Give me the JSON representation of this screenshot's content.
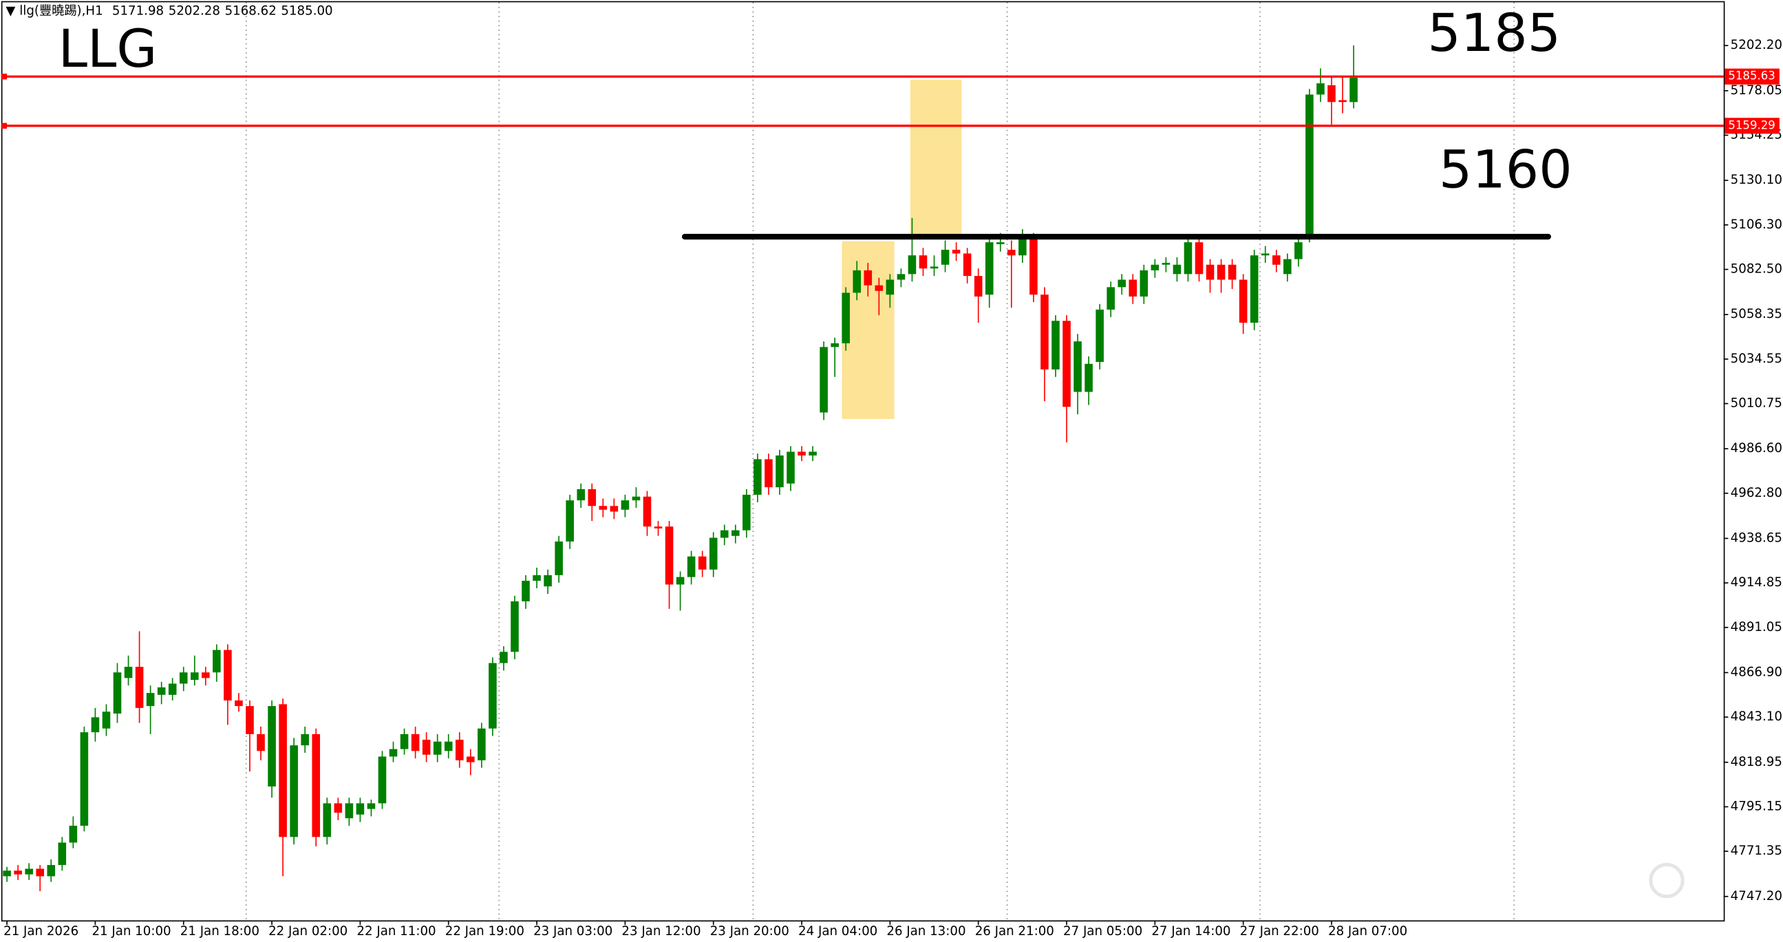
{
  "header": {
    "symbol": "llg(豐曉踢),H1",
    "ohlc": [
      "5171.98",
      "5202.28",
      "5168.62",
      "5185.00"
    ]
  },
  "notes": [
    "LLG",
    "5185",
    "5160"
  ],
  "chart_data": {
    "type": "candlestick",
    "categories": [
      "21 Jan 2026",
      null,
      null,
      null,
      null,
      null,
      null,
      null,
      "21 Jan 10:00",
      null,
      null,
      null,
      null,
      null,
      null,
      null,
      "21 Jan 18:00",
      null,
      null,
      null,
      null,
      null,
      null,
      null,
      "22 Jan 02:00",
      null,
      null,
      null,
      null,
      null,
      null,
      null,
      "22 Jan 11:00",
      null,
      null,
      null,
      null,
      null,
      null,
      null,
      "22 Jan 19:00",
      null,
      null,
      null,
      null,
      null,
      null,
      null,
      "23 Jan 03:00",
      null,
      null,
      null,
      null,
      null,
      null,
      null,
      "23 Jan 12:00",
      null,
      null,
      null,
      null,
      null,
      null,
      null,
      "23 Jan 20:00",
      null,
      null,
      null,
      null,
      null,
      null,
      null,
      "24 Jan 04:00",
      null,
      null,
      null,
      null,
      null,
      null,
      null,
      "26 Jan 13:00",
      null,
      null,
      null,
      null,
      null,
      null,
      null,
      "26 Jan 21:00",
      null,
      null,
      null,
      null,
      null,
      null,
      null,
      "27 Jan 05:00",
      null,
      null,
      null,
      null,
      null,
      null,
      null,
      "27 Jan 14:00",
      null,
      null,
      null,
      null,
      null,
      null,
      null,
      "27 Jan 22:00",
      null,
      null,
      null,
      null,
      null,
      null,
      null,
      "28 Jan 07:00",
      null,
      null
    ],
    "candles": [
      [
        4758,
        4763,
        4755,
        4761
      ],
      [
        4761,
        4764,
        4756,
        4759
      ],
      [
        4759,
        4765,
        4756,
        4762
      ],
      [
        4762,
        4764,
        4750,
        4758
      ],
      [
        4758,
        4767,
        4755,
        4764
      ],
      [
        4764,
        4779,
        4761,
        4776
      ],
      [
        4776,
        4790,
        4773,
        4785
      ],
      [
        4785,
        4838,
        4782,
        4835
      ],
      [
        4835,
        4848,
        4830,
        4843
      ],
      [
        4837,
        4850,
        4833,
        4846
      ],
      [
        4845,
        4872,
        4840,
        4867
      ],
      [
        4864,
        4876,
        4860,
        4870
      ],
      [
        4870,
        4889,
        4840,
        4848
      ],
      [
        4849,
        4860,
        4834,
        4856
      ],
      [
        4855,
        4862,
        4850,
        4859
      ],
      [
        4855,
        4864,
        4852,
        4861
      ],
      [
        4861,
        4870,
        4857,
        4867
      ],
      [
        4863,
        4876,
        4860,
        4867
      ],
      [
        4867,
        4870,
        4860,
        4864
      ],
      [
        4867,
        4882,
        4862,
        4879
      ],
      [
        4879,
        4882,
        4839,
        4852
      ],
      [
        4852,
        4856,
        4846,
        4849
      ],
      [
        4849,
        4852,
        4814,
        4834
      ],
      [
        4834,
        4838,
        4820,
        4825
      ],
      [
        4806,
        4852,
        4800,
        4849
      ],
      [
        4850,
        4853,
        4758,
        4779
      ],
      [
        4779,
        4832,
        4775,
        4828
      ],
      [
        4828,
        4838,
        4824,
        4834
      ],
      [
        4834,
        4837,
        4774,
        4779
      ],
      [
        4779,
        4800,
        4775,
        4797
      ],
      [
        4797,
        4800,
        4788,
        4792
      ],
      [
        4789,
        4800,
        4785,
        4797
      ],
      [
        4791,
        4800,
        4787,
        4797
      ],
      [
        4794,
        4799,
        4790,
        4797
      ],
      [
        4797,
        4825,
        4794,
        4822
      ],
      [
        4822,
        4830,
        4819,
        4826
      ],
      [
        4826,
        4837,
        4823,
        4834
      ],
      [
        4834,
        4838,
        4821,
        4825
      ],
      [
        4831,
        4835,
        4819,
        4823
      ],
      [
        4823,
        4834,
        4819,
        4830
      ],
      [
        4825,
        4834,
        4821,
        4830
      ],
      [
        4831,
        4835,
        4816,
        4820
      ],
      [
        4822,
        4826,
        4812,
        4819
      ],
      [
        4820,
        4840,
        4816,
        4837
      ],
      [
        4837,
        4875,
        4833,
        4872
      ],
      [
        4872,
        4881,
        4868,
        4878
      ],
      [
        4878,
        4908,
        4874,
        4905
      ],
      [
        4905,
        4919,
        4901,
        4916
      ],
      [
        4916,
        4923,
        4912,
        4919
      ],
      [
        4913,
        4922,
        4909,
        4919
      ],
      [
        4919,
        4940,
        4915,
        4937
      ],
      [
        4937,
        4962,
        4933,
        4959
      ],
      [
        4959,
        4968,
        4955,
        4965
      ],
      [
        4965,
        4968,
        4948,
        4956
      ],
      [
        4956,
        4960,
        4950,
        4954
      ],
      [
        4956,
        4960,
        4949,
        4953
      ],
      [
        4954,
        4962,
        4950,
        4959
      ],
      [
        4959,
        4966,
        4955,
        4961
      ],
      [
        4961,
        4964,
        4940,
        4945
      ],
      [
        4945,
        4948,
        4940,
        4944
      ],
      [
        4945,
        4948,
        4901,
        4914
      ],
      [
        4914,
        4921,
        4900,
        4918
      ],
      [
        4918,
        4932,
        4914,
        4929
      ],
      [
        4929,
        4932,
        4918,
        4922
      ],
      [
        4922,
        4942,
        4918,
        4939
      ],
      [
        4939,
        4946,
        4935,
        4943
      ],
      [
        4940,
        4946,
        4936,
        4943
      ],
      [
        4943,
        4965,
        4939,
        4962
      ],
      [
        4962,
        4984,
        4958,
        4981
      ],
      [
        4981,
        4984,
        4962,
        4966
      ],
      [
        4966,
        4986,
        4962,
        4983
      ],
      [
        4968,
        4988,
        4964,
        4985
      ],
      [
        4985,
        4988,
        4980,
        4983
      ],
      [
        4983,
        4988,
        4980,
        4985
      ],
      [
        5006,
        5044,
        5002,
        5041
      ],
      [
        5041,
        5046,
        5025,
        5043
      ],
      [
        5043,
        5073,
        5039,
        5070
      ],
      [
        5070,
        5087,
        5066,
        5082
      ],
      [
        5082,
        5086,
        5068,
        5074
      ],
      [
        5074,
        5078,
        5058,
        5071
      ],
      [
        5069,
        5080,
        5062,
        5077
      ],
      [
        5077,
        5083,
        5073,
        5080
      ],
      [
        5080,
        5110,
        5076,
        5090
      ],
      [
        5090,
        5094,
        5079,
        5083
      ],
      [
        5083,
        5090,
        5079,
        5084
      ],
      [
        5085,
        5098,
        5081,
        5093
      ],
      [
        5093,
        5097,
        5087,
        5091
      ],
      [
        5091,
        5094,
        5075,
        5079
      ],
      [
        5079,
        5083,
        5054,
        5068
      ],
      [
        5069,
        5100,
        5062,
        5097
      ],
      [
        5096,
        5102,
        5092,
        5097
      ],
      [
        5093,
        5098,
        5062,
        5090
      ],
      [
        5090,
        5104,
        5086,
        5099
      ],
      [
        5099,
        5102,
        5065,
        5069
      ],
      [
        5069,
        5073,
        5012,
        5029
      ],
      [
        5029,
        5058,
        5025,
        5055
      ],
      [
        5055,
        5058,
        4990,
        5009
      ],
      [
        5017,
        5048,
        5005,
        5044
      ],
      [
        5017,
        5036,
        5010,
        5032
      ],
      [
        5033,
        5064,
        5029,
        5061
      ],
      [
        5061,
        5076,
        5057,
        5073
      ],
      [
        5073,
        5080,
        5069,
        5077
      ],
      [
        5077,
        5080,
        5064,
        5068
      ],
      [
        5068,
        5085,
        5064,
        5082
      ],
      [
        5082,
        5088,
        5078,
        5085
      ],
      [
        5085,
        5089,
        5081,
        5086
      ],
      [
        5080,
        5089,
        5076,
        5085
      ],
      [
        5080,
        5100,
        5076,
        5097
      ],
      [
        5097,
        5100,
        5076,
        5080
      ],
      [
        5085,
        5088,
        5070,
        5077
      ],
      [
        5085,
        5088,
        5070,
        5077
      ],
      [
        5085,
        5088,
        5072,
        5077
      ],
      [
        5077,
        5080,
        5048,
        5054
      ],
      [
        5054,
        5093,
        5050,
        5090
      ],
      [
        5090,
        5095,
        5086,
        5091
      ],
      [
        5090,
        5093,
        5081,
        5085
      ],
      [
        5080,
        5091,
        5076,
        5088
      ],
      [
        5088,
        5100,
        5084,
        5097
      ],
      [
        5100,
        5179,
        5097,
        5176
      ],
      [
        5176,
        5190,
        5172,
        5182
      ],
      [
        5181,
        5186,
        5160,
        5172
      ],
      [
        5173,
        5186,
        5166,
        5172
      ],
      [
        5171.98,
        5202.28,
        5168.62,
        5185
      ]
    ],
    "up_color": "#008000",
    "down_color": "#ff0000",
    "ylim": [
      4734.41,
      5225.34
    ],
    "yticks": [
      {
        "value": 5202.2,
        "label": "5202.20"
      },
      5178.05,
      5154.25,
      {
        "value": 5130.1,
        "label": "5130.10"
      },
      {
        "value": 5106.3,
        "label": "5106.30"
      },
      {
        "value": 5082.5,
        "label": "5082.50"
      },
      5058.35,
      5034.55,
      5010.75,
      {
        "value": 4986.6,
        "label": "4986.60"
      },
      {
        "value": 4962.8,
        "label": "4962.80"
      },
      4938.65,
      4914.85,
      4891.05,
      {
        "value": 4866.9,
        "label": "4866.90"
      },
      {
        "value": 4843.1,
        "label": "4843.10"
      },
      4818.95,
      4795.15,
      4771.35,
      {
        "value": 4747.2,
        "label": "4747.20"
      }
    ],
    "levels": [
      {
        "value": 5185.63,
        "color": "#ff0000"
      },
      {
        "value": 5159.29,
        "color": "#ff0000"
      }
    ],
    "support_line": 5100,
    "zones": [
      {
        "from": 5002.5,
        "to": 5097.5,
        "color": "#fde08a"
      },
      {
        "from": 5099.9,
        "to": 5183.9,
        "color": "#fde08a"
      }
    ]
  }
}
